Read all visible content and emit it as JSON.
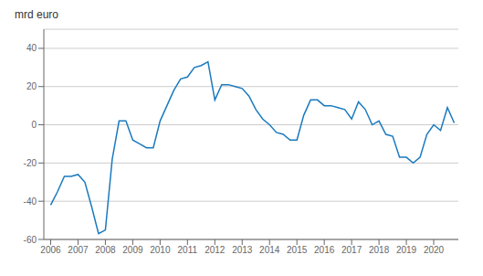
{
  "chart_data": {
    "type": "line",
    "ylabel": "mrd euro",
    "color": "#1a7abf",
    "grid": "y",
    "xlim": [
      2005.75,
      2020.9
    ],
    "xticks": [
      2006,
      2007,
      2008,
      2009,
      2010,
      2011,
      2012,
      2013,
      2014,
      2015,
      2016,
      2017,
      2018,
      2019,
      2020
    ],
    "ylim": [
      -60,
      50
    ],
    "yticks": [
      -60,
      -40,
      -20,
      0,
      20,
      40
    ],
    "x": [
      2006.0,
      2006.25,
      2006.5,
      2006.75,
      2007.0,
      2007.25,
      2007.5,
      2007.75,
      2008.0,
      2008.25,
      2008.5,
      2008.75,
      2009.0,
      2009.25,
      2009.5,
      2009.75,
      2010.0,
      2010.25,
      2010.5,
      2010.75,
      2011.0,
      2011.25,
      2011.5,
      2011.75,
      2012.0,
      2012.25,
      2012.5,
      2012.75,
      2013.0,
      2013.25,
      2013.5,
      2013.75,
      2014.0,
      2014.25,
      2014.5,
      2014.75,
      2015.0,
      2015.25,
      2015.5,
      2015.75,
      2016.0,
      2016.25,
      2016.5,
      2016.75,
      2017.0,
      2017.25,
      2017.5,
      2017.75,
      2018.0,
      2018.25,
      2018.5,
      2018.75,
      2019.0,
      2019.25,
      2019.5,
      2019.75,
      2020.0,
      2020.25,
      2020.5,
      2020.75
    ],
    "values": [
      -42,
      -35,
      -27,
      -27,
      -26,
      -30,
      -43,
      -57,
      -55,
      -18,
      2,
      2,
      -8,
      -10,
      -12,
      -12,
      2,
      10,
      18,
      24,
      25,
      30,
      31,
      33,
      13,
      21,
      21,
      20,
      19,
      15,
      8,
      3,
      0,
      -4,
      -5,
      -8,
      -8,
      5,
      13,
      13,
      10,
      10,
      9,
      8,
      3,
      12,
      8,
      0,
      2,
      -5,
      -6,
      -17,
      -17,
      -20,
      -17,
      -5,
      0,
      -3,
      9,
      1
    ]
  }
}
